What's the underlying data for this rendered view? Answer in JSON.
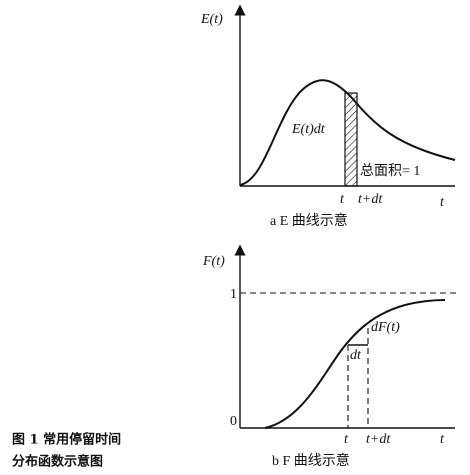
{
  "plot_a": {
    "y_label": "E(t)",
    "area_label": "E(t)dt",
    "total_area": "总面积= 1",
    "t_label": "t",
    "t_dt_label": "t+dt",
    "x_label": "t",
    "caption": "a E 曲线示意"
  },
  "plot_b": {
    "y_label": "F(t)",
    "one_label": "1",
    "dF_label": "dF(t)",
    "dt_label": "dt",
    "zero_label": "0",
    "t_label": "t",
    "t_dt_label": "t+dt",
    "x_label": "t",
    "caption": "b F 曲线示意"
  },
  "figure_caption": {
    "line1": "图 1  常用停留时间",
    "line2": "分布函数示意图"
  }
}
